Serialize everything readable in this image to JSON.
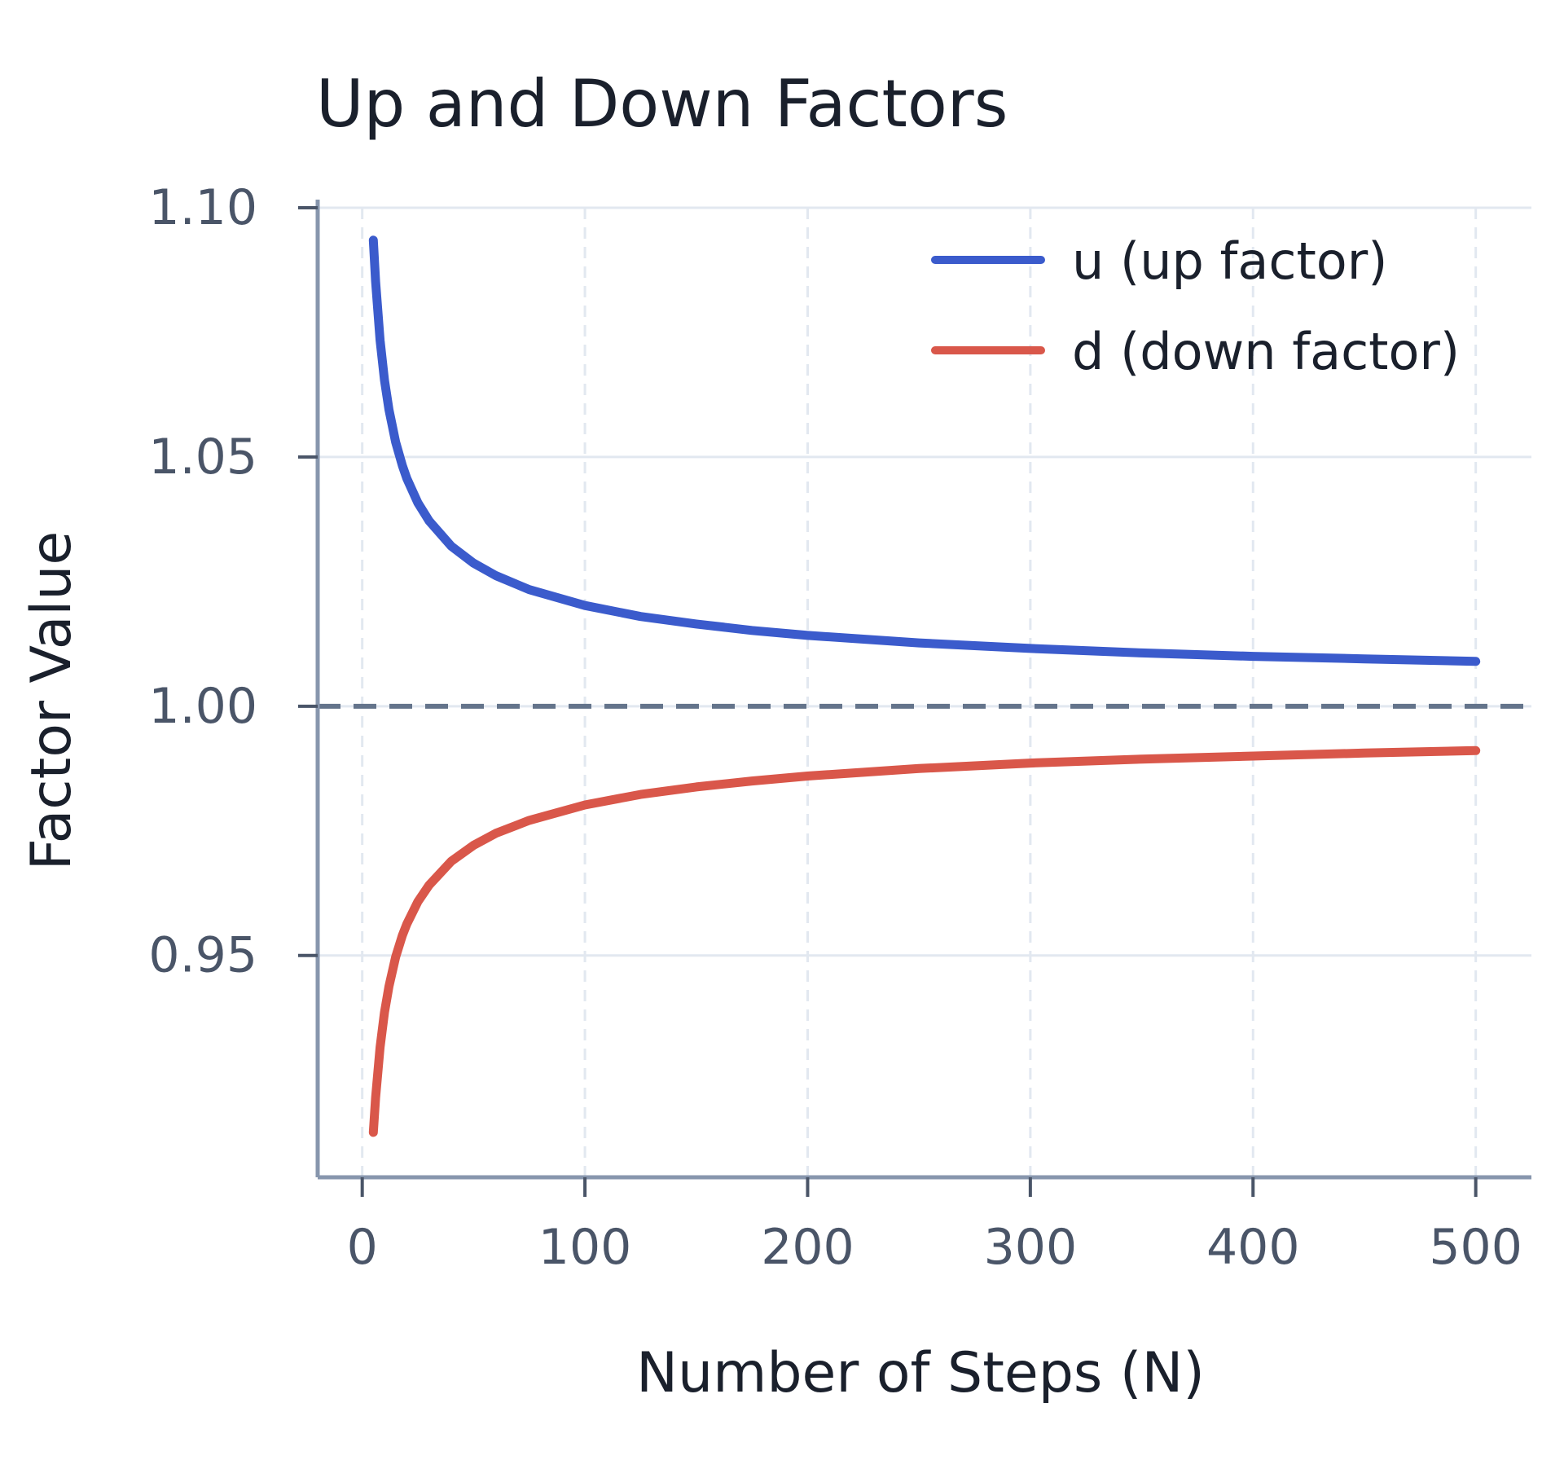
{
  "chart_data": {
    "type": "line",
    "title": "Up and Down Factors",
    "xlabel": "Number of Steps (N)",
    "ylabel": "Factor Value",
    "xlim": [
      -20,
      525
    ],
    "ylim": [
      0.9055,
      1.1
    ],
    "x_ticks": [
      0,
      100,
      200,
      300,
      400,
      500
    ],
    "x_tick_labels": [
      "0",
      "100",
      "200",
      "300",
      "400",
      "500"
    ],
    "y_ticks": [
      0.95,
      1.0,
      1.05,
      1.1
    ],
    "y_tick_labels": [
      "0.95",
      "1.00",
      "1.05",
      "1.10"
    ],
    "grid": true,
    "legend_position": "top-right",
    "reference_line": {
      "y": 1.0,
      "style": "dashed",
      "color": "#64748b"
    },
    "x": [
      5,
      6,
      8,
      10,
      12,
      15,
      18,
      20,
      25,
      30,
      40,
      50,
      60,
      75,
      100,
      125,
      150,
      175,
      200,
      250,
      300,
      350,
      400,
      450,
      500
    ],
    "series": [
      {
        "name": "u (up factor)",
        "color": "#3b5bcc",
        "values": [
          1.0935,
          1.0852,
          1.0734,
          1.0654,
          1.0595,
          1.053,
          1.0483,
          1.0457,
          1.0408,
          1.0372,
          1.0321,
          1.0287,
          1.0262,
          1.0234,
          1.0202,
          1.018,
          1.0165,
          1.0152,
          1.0142,
          1.0127,
          1.0116,
          1.0107,
          1.01,
          1.0095,
          1.009
        ]
      },
      {
        "name": "d (down factor)",
        "color": "#d9574a",
        "values": [
          0.9145,
          0.9215,
          0.9316,
          0.9386,
          0.9438,
          0.9497,
          0.954,
          0.9563,
          0.9608,
          0.9641,
          0.9689,
          0.9721,
          0.9745,
          0.9771,
          0.9802,
          0.9823,
          0.9838,
          0.985,
          0.986,
          0.9875,
          0.9886,
          0.9894,
          0.99,
          0.9906,
          0.9911
        ]
      }
    ]
  }
}
